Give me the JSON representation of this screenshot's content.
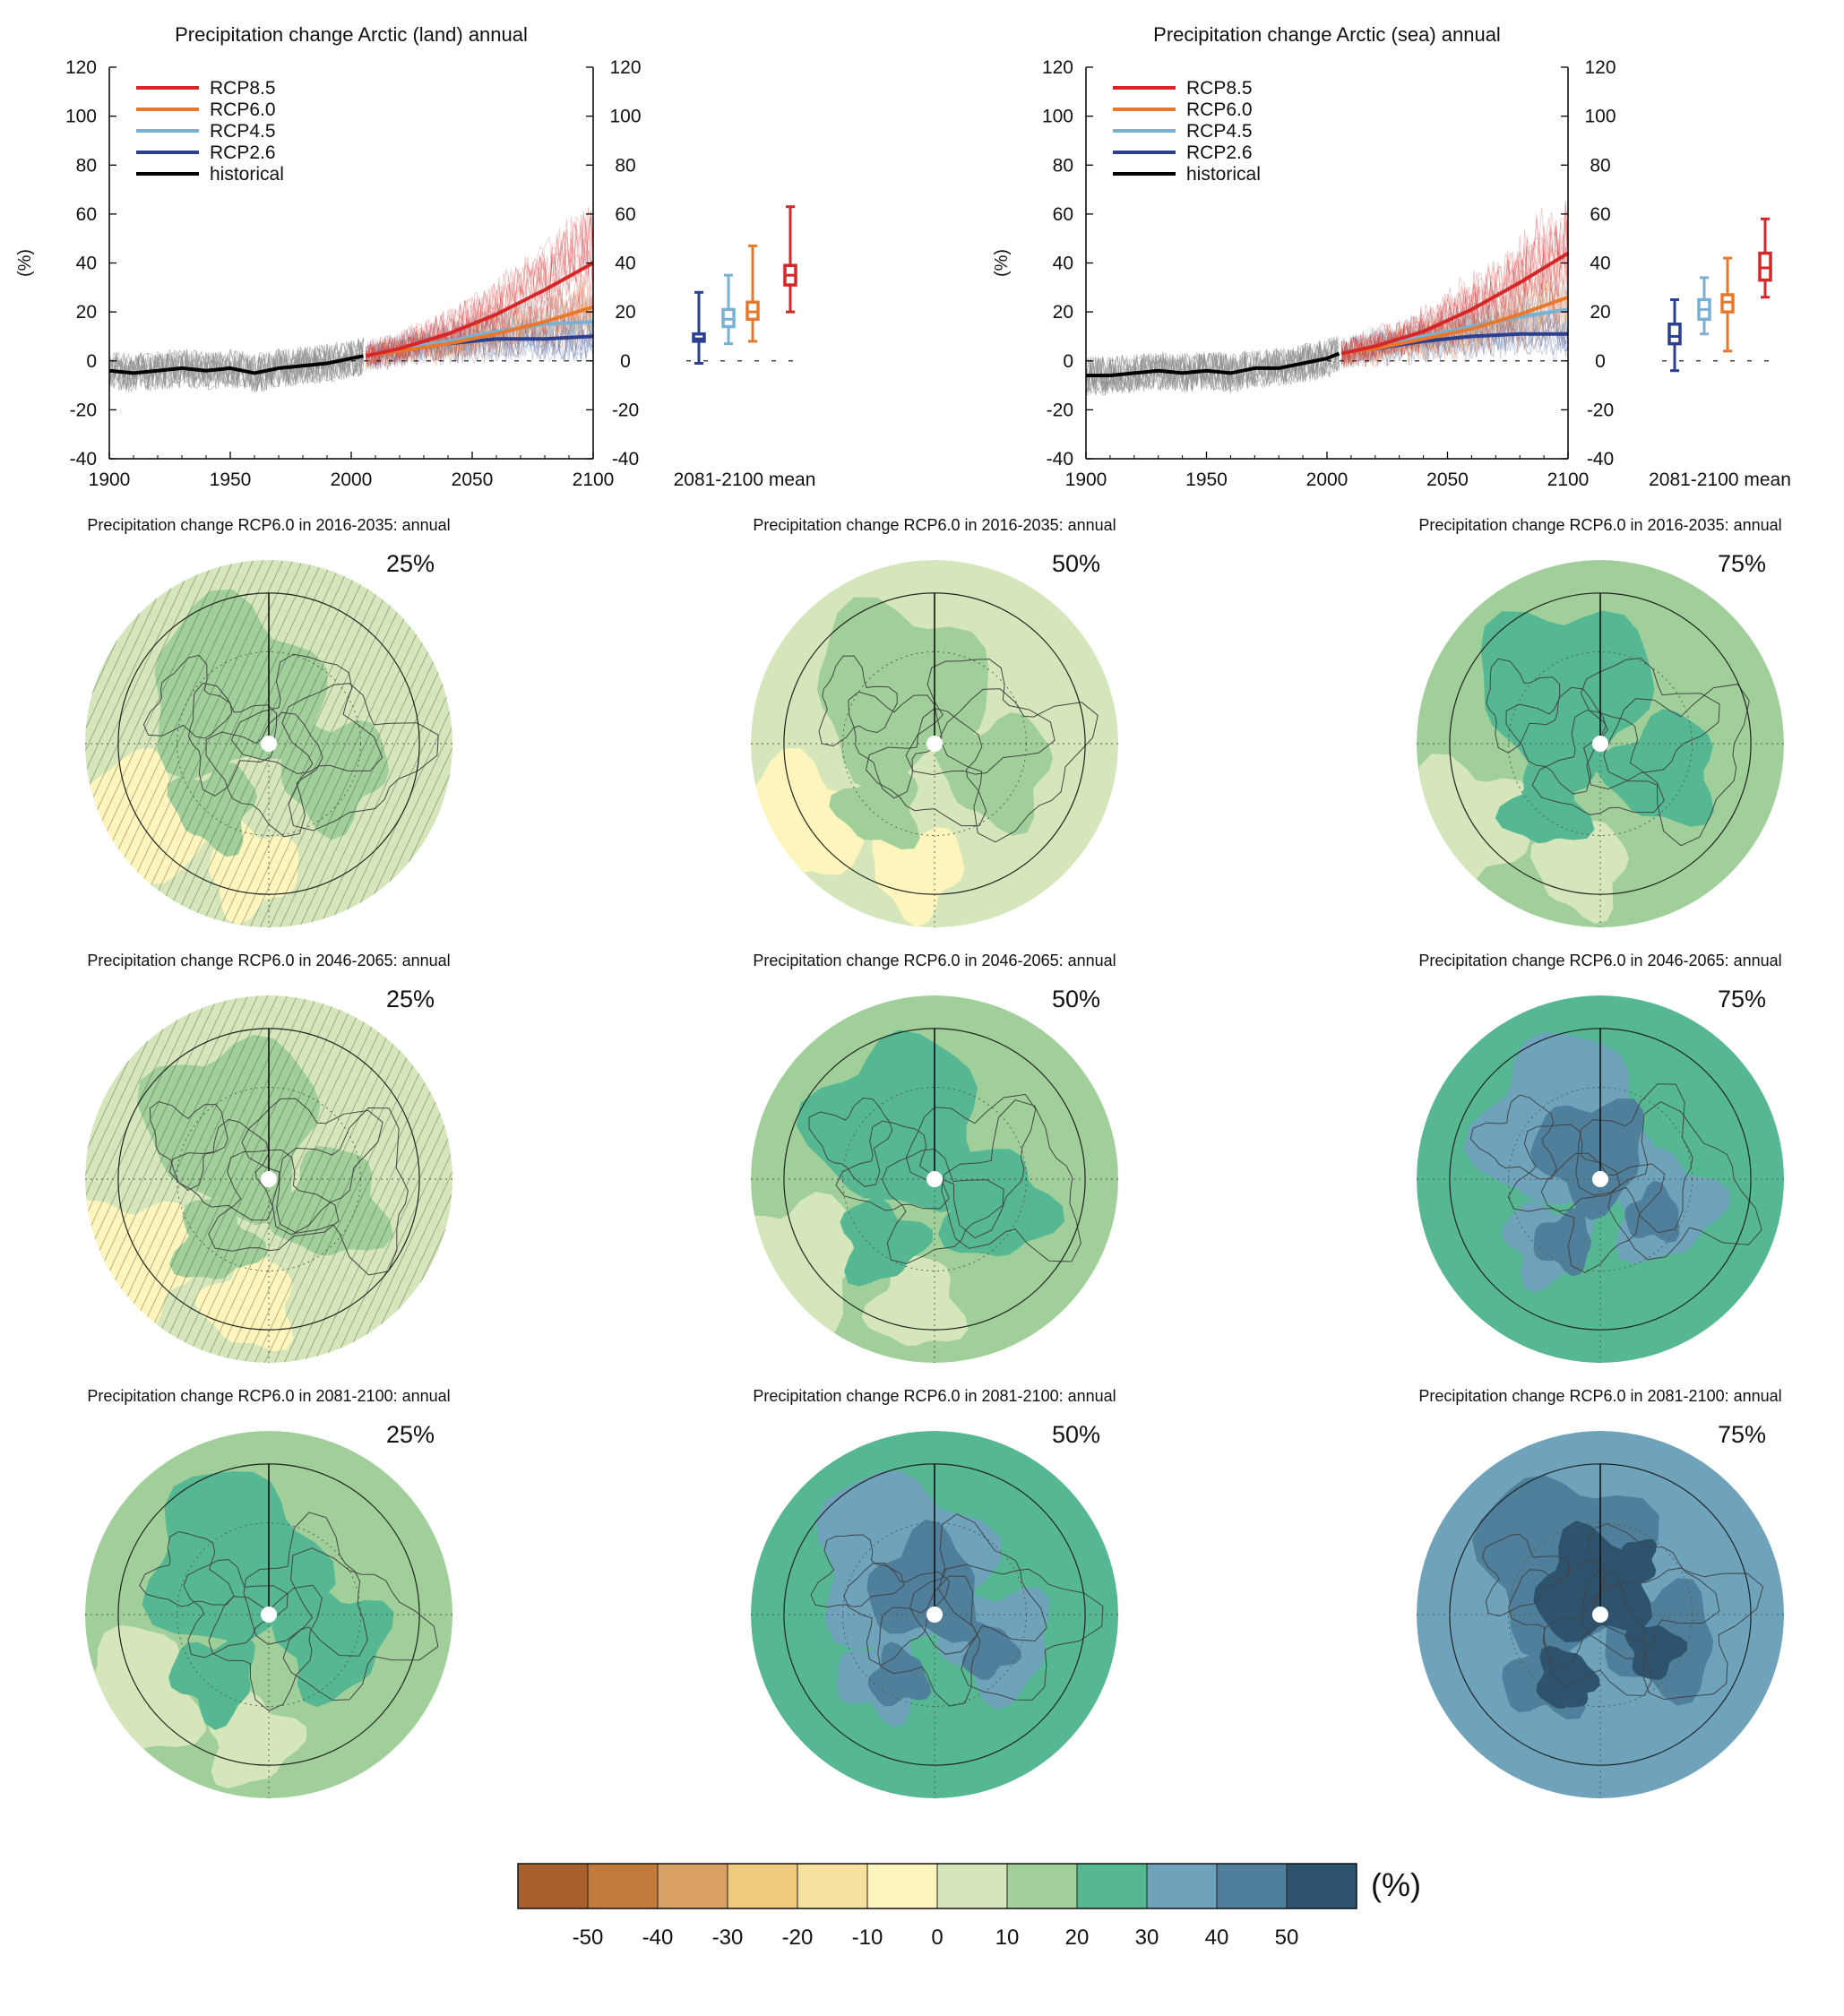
{
  "colors": {
    "rcp85": "#d62728",
    "rcp60": "#e8782c",
    "rcp45": "#7ab0d4",
    "rcp26": "#2b3f8f",
    "historical": "#000000",
    "hist_spread": "#8a8a8a",
    "scale": [
      "#a9602c",
      "#c27a3c",
      "#d8a063",
      "#efc97d",
      "#f6e19e",
      "#fdf5bb",
      "#d5e6bb",
      "#a0cf9a",
      "#55b893",
      "#6ea3bb",
      "#4f7f9b",
      "#2d536e"
    ]
  },
  "chart_data": [
    {
      "type": "line",
      "title": "Precipitation change Arctic (land) annual",
      "ylabel": "(%)",
      "xlim": [
        1900,
        2100
      ],
      "ylim": [
        -40,
        120
      ],
      "xticks": [
        "1900",
        "1950",
        "2000",
        "2050",
        "2100"
      ],
      "yticks": [
        "-40",
        "-20",
        "0",
        "20",
        "40",
        "60",
        "80",
        "100",
        "120"
      ],
      "legend": {
        "placement": "top-left",
        "entries": [
          "RCP8.5",
          "RCP6.0",
          "RCP4.5",
          "RCP2.6",
          "historical"
        ]
      },
      "series": [
        {
          "name": "historical",
          "x": [
            1900,
            1910,
            1920,
            1930,
            1940,
            1950,
            1960,
            1970,
            1980,
            1990,
            2000,
            2005
          ],
          "values": [
            -4,
            -5,
            -4,
            -3,
            -4,
            -3,
            -5,
            -3,
            -2,
            -1,
            1,
            2
          ]
        },
        {
          "name": "RCP2.6",
          "x": [
            2006,
            2020,
            2040,
            2060,
            2080,
            2100
          ],
          "values": [
            2,
            4,
            7,
            9,
            9,
            10
          ]
        },
        {
          "name": "RCP4.5",
          "x": [
            2006,
            2020,
            2040,
            2060,
            2080,
            2100
          ],
          "values": [
            2,
            5,
            8,
            12,
            15,
            16
          ]
        },
        {
          "name": "RCP6.0",
          "x": [
            2006,
            2020,
            2040,
            2060,
            2080,
            2100
          ],
          "values": [
            2,
            4,
            7,
            11,
            16,
            22
          ]
        },
        {
          "name": "RCP8.5",
          "x": [
            2006,
            2020,
            2040,
            2060,
            2080,
            2100
          ],
          "values": [
            2,
            5,
            11,
            19,
            29,
            40
          ]
        }
      ],
      "mean_label": "2081-2100 mean",
      "boxes": [
        {
          "name": "RCP2.6",
          "min": -1,
          "q1": 8,
          "median": 9,
          "q3": 11,
          "max": 28
        },
        {
          "name": "RCP4.5",
          "min": 7,
          "q1": 14,
          "median": 17,
          "q3": 21,
          "max": 35
        },
        {
          "name": "RCP6.0",
          "min": 8,
          "q1": 17,
          "median": 20,
          "q3": 24,
          "max": 47
        },
        {
          "name": "RCP8.5",
          "min": 20,
          "q1": 31,
          "median": 35,
          "q3": 39,
          "max": 63
        }
      ]
    },
    {
      "type": "line",
      "title": "Precipitation change Arctic (sea) annual",
      "ylabel": "(%)",
      "xlim": [
        1900,
        2100
      ],
      "ylim": [
        -40,
        120
      ],
      "xticks": [
        "1900",
        "1950",
        "2000",
        "2050",
        "2100"
      ],
      "yticks": [
        "-40",
        "-20",
        "0",
        "20",
        "40",
        "60",
        "80",
        "100",
        "120"
      ],
      "legend": {
        "placement": "top-left",
        "entries": [
          "RCP8.5",
          "RCP6.0",
          "RCP4.5",
          "RCP2.6",
          "historical"
        ]
      },
      "series": [
        {
          "name": "historical",
          "x": [
            1900,
            1910,
            1920,
            1930,
            1940,
            1950,
            1960,
            1970,
            1980,
            1990,
            2000,
            2005
          ],
          "values": [
            -6,
            -6,
            -5,
            -4,
            -5,
            -4,
            -5,
            -3,
            -3,
            -1,
            1,
            3
          ]
        },
        {
          "name": "RCP2.6",
          "x": [
            2006,
            2020,
            2040,
            2060,
            2080,
            2100
          ],
          "values": [
            3,
            5,
            8,
            10,
            11,
            11
          ]
        },
        {
          "name": "RCP4.5",
          "x": [
            2006,
            2020,
            2040,
            2060,
            2080,
            2100
          ],
          "values": [
            3,
            6,
            10,
            14,
            18,
            21
          ]
        },
        {
          "name": "RCP6.0",
          "x": [
            2006,
            2020,
            2040,
            2060,
            2080,
            2100
          ],
          "values": [
            3,
            5,
            9,
            13,
            19,
            26
          ]
        },
        {
          "name": "RCP8.5",
          "x": [
            2006,
            2020,
            2040,
            2060,
            2080,
            2100
          ],
          "values": [
            3,
            6,
            12,
            21,
            32,
            44
          ]
        }
      ],
      "mean_label": "2081-2100 mean",
      "boxes": [
        {
          "name": "RCP2.6",
          "min": -4,
          "q1": 7,
          "median": 10,
          "q3": 15,
          "max": 25
        },
        {
          "name": "RCP4.5",
          "min": 11,
          "q1": 17,
          "median": 21,
          "q3": 25,
          "max": 34
        },
        {
          "name": "RCP6.0",
          "min": 4,
          "q1": 20,
          "median": 24,
          "q3": 27,
          "max": 42
        },
        {
          "name": "RCP8.5",
          "min": 26,
          "q1": 33,
          "median": 38,
          "q3": 44,
          "max": 58
        }
      ]
    },
    {
      "type": "heatmap",
      "projection": "north-polar",
      "panels": [
        {
          "title": "Precipitation change RCP6.0 in 2016-2035: annual",
          "label": "25%",
          "level": 1,
          "hatched": true
        },
        {
          "title": "Precipitation change RCP6.0 in 2016-2035: annual",
          "label": "50%",
          "level": 1,
          "hatched": false
        },
        {
          "title": "Precipitation change RCP6.0 in 2016-2035: annual",
          "label": "75%",
          "level": 2,
          "hatched": false
        },
        {
          "title": "Precipitation change RCP6.0 in 2046-2065: annual",
          "label": "25%",
          "level": 1,
          "hatched": true
        },
        {
          "title": "Precipitation change RCP6.0 in 2046-2065: annual",
          "label": "50%",
          "level": 2,
          "hatched": false
        },
        {
          "title": "Precipitation change RCP6.0 in 2046-2065: annual",
          "label": "75%",
          "level": 3,
          "hatched": false
        },
        {
          "title": "Precipitation change RCP6.0 in 2081-2100: annual",
          "label": "25%",
          "level": 2,
          "hatched": false
        },
        {
          "title": "Precipitation change RCP6.0 in 2081-2100: annual",
          "label": "50%",
          "level": 3,
          "hatched": false
        },
        {
          "title": "Precipitation change RCP6.0 in 2081-2100: annual",
          "label": "75%",
          "level": 4,
          "hatched": false
        }
      ],
      "colorbar": {
        "unit": "(%)",
        "ticks": [
          "-50",
          "-40",
          "-30",
          "-20",
          "-10",
          "0",
          "10",
          "20",
          "30",
          "40",
          "50"
        ]
      }
    }
  ]
}
